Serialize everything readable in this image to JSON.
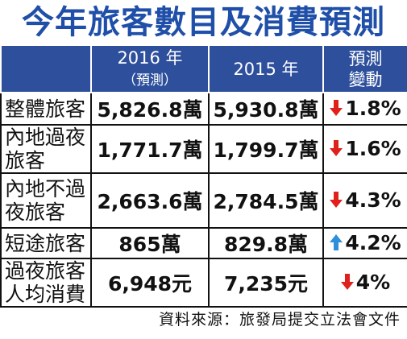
{
  "header": {
    "title": "今年旅客數目及消費預測"
  },
  "table": {
    "columns": [
      [
        "2016 年",
        "（預測）"
      ],
      [
        "2015 年"
      ],
      [
        "預測",
        "變動"
      ]
    ],
    "rows": [
      {
        "label": [
          "整體旅客"
        ],
        "y2016": "5,826.8萬",
        "y2015": "5,930.8萬",
        "change": "1.8%",
        "arrow": "down",
        "arrow_color": "#e0201b"
      },
      {
        "label": [
          "內地過夜",
          "旅客"
        ],
        "y2016": "1,771.7萬",
        "y2015": "1,799.7萬",
        "change": "1.6%",
        "arrow": "down",
        "arrow_color": "#e0201b"
      },
      {
        "label": [
          "內地不過",
          "夜旅客"
        ],
        "y2016": "2,663.6萬",
        "y2015": "2,784.5萬",
        "change": "4.3%",
        "arrow": "down",
        "arrow_color": "#e0201b"
      },
      {
        "label": [
          "短途旅客"
        ],
        "y2016": "865萬",
        "y2015": "829.8萬",
        "change": "4.2%",
        "arrow": "up",
        "arrow_color": "#2f8fd8"
      },
      {
        "label": [
          "過夜旅客",
          "人均消費"
        ],
        "y2016": "6,948元",
        "y2015": "7,235元",
        "change": "4%",
        "arrow": "down",
        "arrow_color": "#e0201b"
      }
    ]
  },
  "source": "資料來源：旅發局提交立法會文件"
}
